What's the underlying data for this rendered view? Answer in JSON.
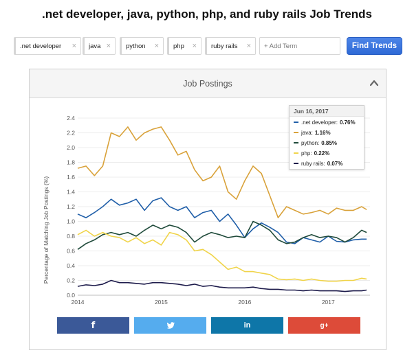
{
  "header": {
    "title": ".net developer, java, python, php, and ruby rails Job Trends"
  },
  "terms": [
    {
      "label": ".net developer",
      "color": "#1f5ea8"
    },
    {
      "label": "java",
      "color": "#d9a23a"
    },
    {
      "label": "python",
      "color": "#1f4a3a"
    },
    {
      "label": "php",
      "color": "#f0d44a"
    },
    {
      "label": "ruby rails",
      "color": "#1c1a4a"
    }
  ],
  "remove_glyph": "×",
  "add_term": {
    "placeholder": "+ Add Term"
  },
  "find_button": {
    "label": "Find Trends"
  },
  "panel": {
    "title": "Job Postings"
  },
  "tooltip": {
    "date": "Jun 16, 2017",
    "rows": [
      {
        "label": ".net developer:",
        "value": "0.76%",
        "color": "#1f5ea8"
      },
      {
        "label": "java:",
        "value": "1.16%",
        "color": "#d9a23a"
      },
      {
        "label": "python:",
        "value": "0.85%",
        "color": "#1f4a3a"
      },
      {
        "label": "php:",
        "value": "0.22%",
        "color": "#f0d44a"
      },
      {
        "label": "ruby rails:",
        "value": "0.07%",
        "color": "#1c1a4a"
      }
    ]
  },
  "share": [
    {
      "network": "facebook",
      "label": "f",
      "color": "#3b5998",
      "icon": "facebook-icon"
    },
    {
      "network": "twitter",
      "label": "",
      "color": "#55acee",
      "icon": "twitter-icon"
    },
    {
      "network": "linkedin",
      "label": "in",
      "color": "#0e76a8",
      "icon": "linkedin-icon"
    },
    {
      "network": "googleplus",
      "label": "g+",
      "color": "#dd4b39",
      "icon": "googleplus-icon"
    }
  ],
  "chart_data": {
    "type": "line",
    "title": "",
    "xlabel": "",
    "ylabel": "Percentage of Matching Job Postings (%)",
    "ylim": [
      0,
      2.4
    ],
    "yticks": [
      "0.0",
      "0.2",
      "0.4",
      "0.6",
      "0.8",
      "1.0",
      "1.2",
      "1.4",
      "1.6",
      "1.8",
      "2.0",
      "2.2",
      "2.4"
    ],
    "xticks": [
      "2014",
      "2015",
      "2016",
      "2017"
    ],
    "x": [
      2014.0,
      2014.1,
      2014.2,
      2014.3,
      2014.4,
      2014.5,
      2014.6,
      2014.7,
      2014.8,
      2014.9,
      2015.0,
      2015.1,
      2015.2,
      2015.3,
      2015.4,
      2015.5,
      2015.6,
      2015.7,
      2015.8,
      2015.9,
      2016.0,
      2016.1,
      2016.2,
      2016.3,
      2016.4,
      2016.5,
      2016.6,
      2016.7,
      2016.8,
      2016.9,
      2017.0,
      2017.1,
      2017.2,
      2017.3,
      2017.4,
      2017.46
    ],
    "grid": true,
    "series": [
      {
        "name": ".net developer",
        "color": "#1f5ea8",
        "values": [
          1.1,
          1.05,
          1.12,
          1.2,
          1.3,
          1.22,
          1.25,
          1.3,
          1.15,
          1.28,
          1.32,
          1.2,
          1.15,
          1.2,
          1.05,
          1.12,
          1.15,
          1.0,
          1.1,
          0.95,
          0.78,
          0.9,
          0.98,
          0.92,
          0.85,
          0.72,
          0.7,
          0.78,
          0.75,
          0.72,
          0.8,
          0.73,
          0.72,
          0.75,
          0.76,
          0.76
        ]
      },
      {
        "name": "java",
        "color": "#d9a23a",
        "values": [
          1.72,
          1.75,
          1.62,
          1.75,
          2.2,
          2.15,
          2.28,
          2.1,
          2.2,
          2.25,
          2.28,
          2.1,
          1.9,
          1.95,
          1.7,
          1.55,
          1.6,
          1.75,
          1.4,
          1.3,
          1.55,
          1.75,
          1.65,
          1.35,
          1.05,
          1.2,
          1.15,
          1.1,
          1.12,
          1.15,
          1.1,
          1.18,
          1.15,
          1.15,
          1.2,
          1.16
        ]
      },
      {
        "name": "python",
        "color": "#1f4a3a",
        "values": [
          0.62,
          0.7,
          0.75,
          0.82,
          0.85,
          0.82,
          0.85,
          0.8,
          0.88,
          0.95,
          0.9,
          0.95,
          0.92,
          0.85,
          0.72,
          0.8,
          0.85,
          0.82,
          0.78,
          0.8,
          0.78,
          1.0,
          0.95,
          0.88,
          0.75,
          0.7,
          0.72,
          0.78,
          0.82,
          0.78,
          0.8,
          0.78,
          0.72,
          0.78,
          0.88,
          0.85
        ]
      },
      {
        "name": "php",
        "color": "#f0d44a",
        "values": [
          0.82,
          0.88,
          0.8,
          0.85,
          0.8,
          0.78,
          0.72,
          0.78,
          0.7,
          0.75,
          0.68,
          0.85,
          0.82,
          0.75,
          0.6,
          0.62,
          0.55,
          0.45,
          0.35,
          0.38,
          0.32,
          0.32,
          0.3,
          0.28,
          0.22,
          0.21,
          0.22,
          0.2,
          0.22,
          0.2,
          0.19,
          0.19,
          0.2,
          0.2,
          0.23,
          0.22
        ]
      },
      {
        "name": "ruby rails",
        "color": "#1c1a4a",
        "values": [
          0.12,
          0.14,
          0.13,
          0.15,
          0.2,
          0.17,
          0.17,
          0.16,
          0.15,
          0.17,
          0.17,
          0.16,
          0.15,
          0.13,
          0.15,
          0.12,
          0.13,
          0.11,
          0.1,
          0.1,
          0.1,
          0.11,
          0.09,
          0.08,
          0.08,
          0.07,
          0.07,
          0.06,
          0.07,
          0.06,
          0.06,
          0.06,
          0.05,
          0.06,
          0.06,
          0.07
        ]
      }
    ]
  }
}
